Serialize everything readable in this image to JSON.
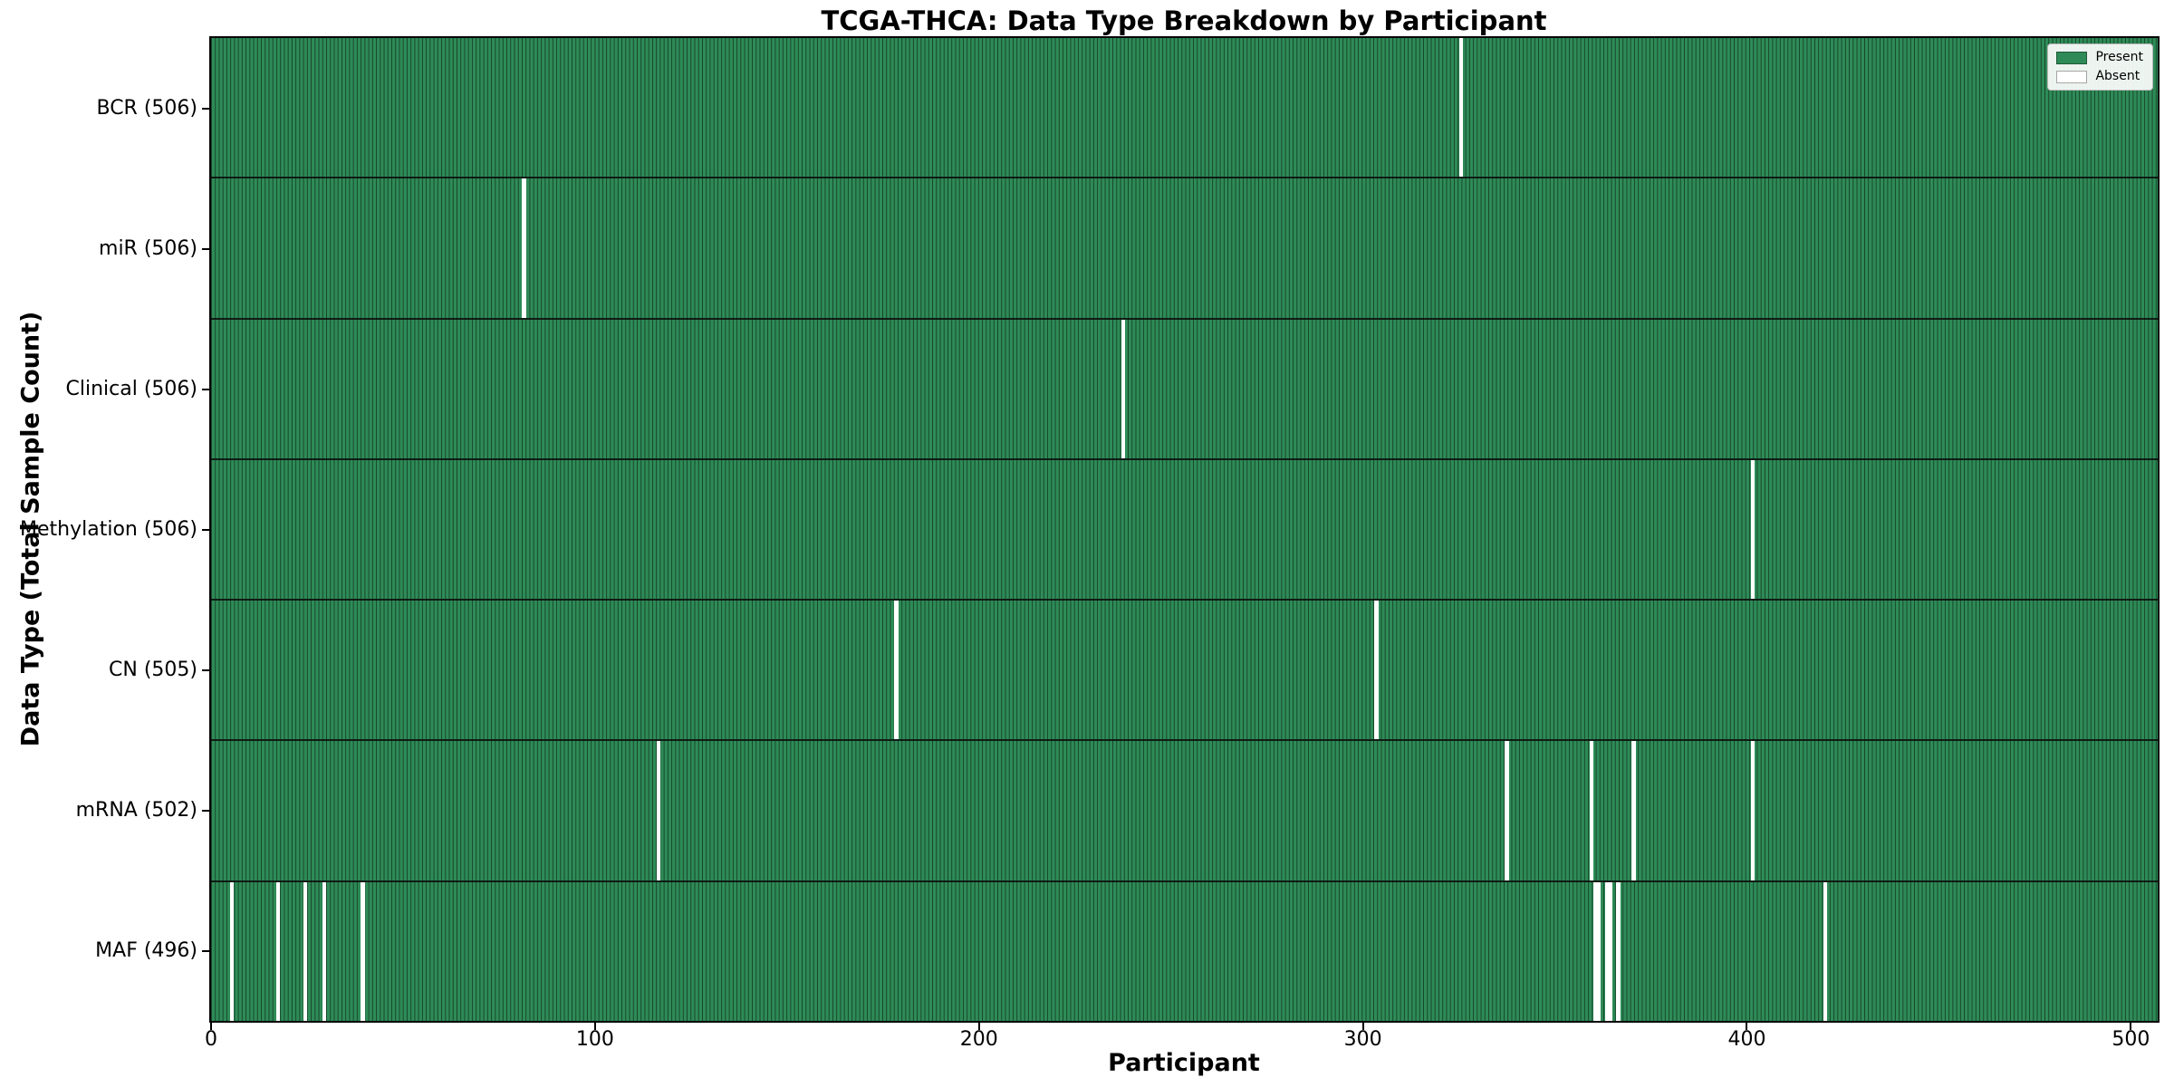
{
  "chart_data": {
    "type": "heatmap",
    "title": "TCGA-THCA: Data Type Breakdown by Participant",
    "xlabel": "Participant",
    "ylabel": "Data Type (Total Sample Count)",
    "n_participants": 507,
    "xlim": [
      0,
      507
    ],
    "x_ticks": [
      0,
      100,
      200,
      300,
      400,
      500
    ],
    "x_tick_labels": [
      "0",
      "100",
      "200",
      "300",
      "400",
      "500"
    ],
    "grid": false,
    "legend_position": "upper right",
    "legend": [
      {
        "label": "Present",
        "color": "#2e8b57"
      },
      {
        "label": "Absent",
        "color": "#ffffff"
      }
    ],
    "colors": {
      "present": "#2e8b57",
      "absent": "#ffffff",
      "bar_edge": "rgba(0,0,0,0.5)",
      "row_separator": "rgba(10,10,10,0.85)"
    },
    "rows": [
      {
        "name": "BCR",
        "count": 506,
        "label": "BCR (506)",
        "absent": [
          325
        ]
      },
      {
        "name": "miR",
        "count": 506,
        "label": "miR (506)",
        "absent": [
          81
        ]
      },
      {
        "name": "Clinical",
        "count": 506,
        "label": "Clinical (506)",
        "absent": [
          237
        ]
      },
      {
        "name": "Methylation",
        "count": 506,
        "label": "Methylation (506)",
        "absent": [
          401
        ]
      },
      {
        "name": "CN",
        "count": 505,
        "label": "CN (505)",
        "absent": [
          178,
          303
        ]
      },
      {
        "name": "mRNA",
        "count": 502,
        "label": "mRNA (502)",
        "absent": [
          116,
          337,
          359,
          370,
          401
        ]
      },
      {
        "name": "MAF",
        "count": 496,
        "label": "MAF (496)",
        "absent": [
          5,
          17,
          24,
          29,
          39,
          360,
          361,
          363,
          364,
          366,
          420
        ]
      }
    ]
  }
}
